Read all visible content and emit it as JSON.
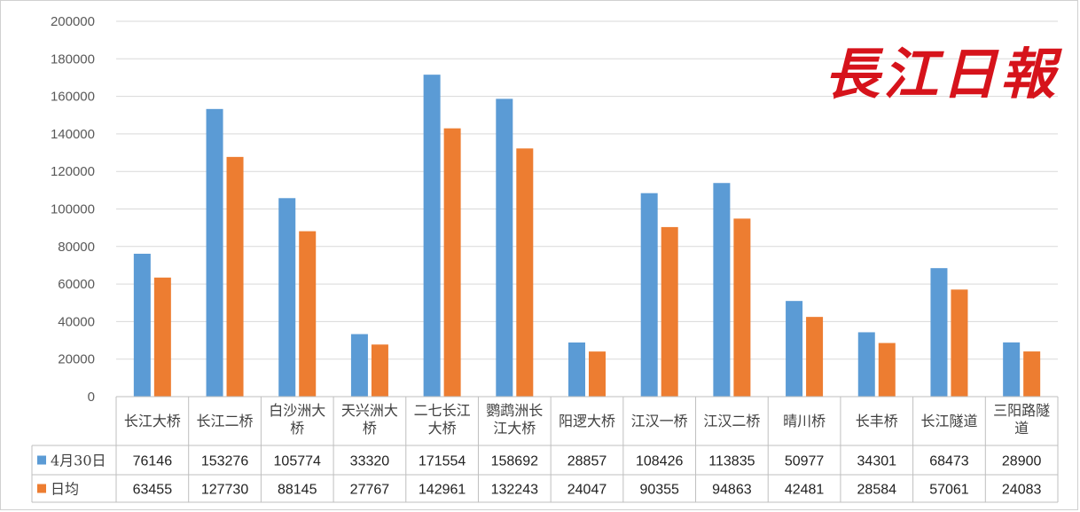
{
  "chart_data": {
    "type": "bar",
    "categories": [
      [
        "长江大桥"
      ],
      [
        "长江二桥"
      ],
      [
        "白沙洲大",
        "桥"
      ],
      [
        "天兴洲大",
        "桥"
      ],
      [
        "二七长江",
        "大桥"
      ],
      [
        "鹦鹉洲长",
        "江大桥"
      ],
      [
        "阳逻大桥"
      ],
      [
        "江汉一桥"
      ],
      [
        "江汉二桥"
      ],
      [
        "晴川桥"
      ],
      [
        "长丰桥"
      ],
      [
        "长江隧道"
      ],
      [
        "三阳路隧",
        "道"
      ]
    ],
    "series": [
      {
        "name": "4月30日",
        "color": "#5b9bd5",
        "values": [
          76146,
          153276,
          105774,
          33320,
          171554,
          158692,
          28857,
          108426,
          113835,
          50977,
          34301,
          68473,
          28900
        ]
      },
      {
        "name": "日均",
        "color": "#ed7d31",
        "values": [
          63455,
          127730,
          88145,
          27767,
          142961,
          132243,
          24047,
          90355,
          94863,
          42481,
          28584,
          57061,
          24083
        ]
      }
    ],
    "ylim": [
      0,
      200000
    ],
    "yticks": [
      0,
      20000,
      40000,
      60000,
      80000,
      100000,
      120000,
      140000,
      160000,
      180000,
      200000
    ],
    "grid": true,
    "legend": "data-table"
  },
  "logo_text": "長江日報"
}
